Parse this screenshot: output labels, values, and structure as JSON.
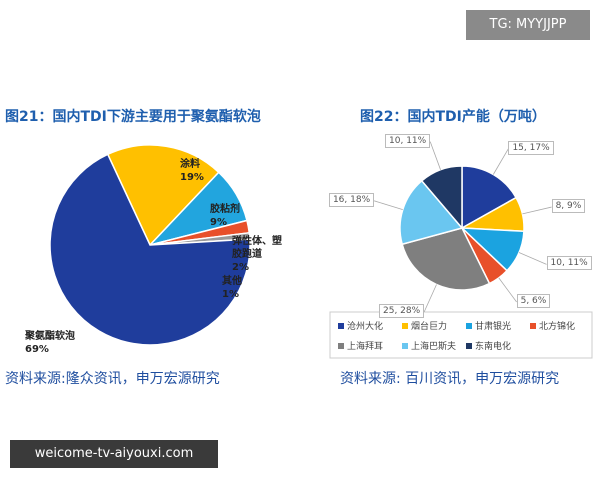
{
  "watermark_top": "TG: MYYJJPP",
  "watermark_bottom": "weicome-tv-aiyouxi.com",
  "chart_data": [
    {
      "type": "pie",
      "title": "图21：国内TDI下游主要用于聚氨酯软泡",
      "categories": [
        "涂料",
        "胶粘剂",
        "弹性体、塑胶跑道",
        "其他",
        "聚氨酯软泡"
      ],
      "values": [
        19,
        9,
        2,
        1,
        69
      ],
      "value_labels": [
        "19%",
        "9%",
        "2%",
        "1%",
        "69%"
      ],
      "colors": [
        "#ffc000",
        "#22a5de",
        "#e8502a",
        "#9a9a9a",
        "#1f3d9c"
      ],
      "source": "资料来源:隆众资讯，申万宏源研究"
    },
    {
      "type": "pie",
      "title": "图22：国内TDI产能（万吨）",
      "categories": [
        "沧州大化",
        "烟台巨力",
        "甘肃银光",
        "北方锦化",
        "上海拜耳",
        "上海巴斯夫",
        "东南电化"
      ],
      "values": [
        15,
        8,
        10,
        5,
        25,
        16,
        10
      ],
      "value_labels": [
        "15, 17%",
        "8, 9%",
        "10, 11%",
        "5, 6%",
        "25, 28%",
        "16, 18%",
        "10, 11%"
      ],
      "colors": [
        "#1f3d9c",
        "#ffc000",
        "#1ba3e0",
        "#e8502a",
        "#7f7f7f",
        "#6ac6f0",
        "#1f3864"
      ],
      "source": "资料来源: 百川资讯，申万宏源研究"
    }
  ]
}
